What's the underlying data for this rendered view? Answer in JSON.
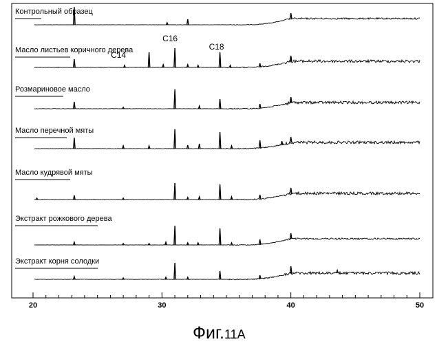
{
  "chart_data": {
    "type": "line",
    "title": "",
    "xlabel": "",
    "ylabel": "",
    "xlim": [
      20,
      50
    ],
    "x_ticks": [
      20,
      30,
      40,
      50
    ],
    "grid": false,
    "series": [
      {
        "name": "Контрольный образец",
        "peaks": [
          [
            23.2,
            26
          ],
          [
            30.4,
            3
          ],
          [
            32.0,
            8
          ],
          [
            40.0,
            8
          ]
        ],
        "noise": "low"
      },
      {
        "name": "Масло листьев коричного дерева",
        "peaks": [
          [
            23.2,
            12
          ],
          [
            27.1,
            3
          ],
          [
            29.0,
            22
          ],
          [
            30.1,
            4
          ],
          [
            31.0,
            28
          ],
          [
            32.0,
            4
          ],
          [
            32.8,
            3
          ],
          [
            34.5,
            22
          ],
          [
            35.3,
            3
          ],
          [
            37.6,
            5
          ],
          [
            40.0,
            8
          ]
        ],
        "noise": "medium"
      },
      {
        "name": "Розмариновое масло",
        "peaks": [
          [
            23.2,
            10
          ],
          [
            27.0,
            2
          ],
          [
            31.0,
            28
          ],
          [
            32.9,
            4
          ],
          [
            34.5,
            14
          ],
          [
            37.6,
            6
          ],
          [
            40.0,
            8
          ]
        ],
        "noise": "medium"
      },
      {
        "name": "Масло перечной мяты",
        "peaks": [
          [
            23.2,
            16
          ],
          [
            27.0,
            4
          ],
          [
            29.0,
            4
          ],
          [
            31.0,
            28
          ],
          [
            32.0,
            5
          ],
          [
            32.9,
            7
          ],
          [
            34.5,
            24
          ],
          [
            35.4,
            4
          ],
          [
            37.6,
            11
          ],
          [
            39.3,
            5
          ],
          [
            40.0,
            8
          ]
        ],
        "noise": "medium"
      },
      {
        "name": "Масло кудрявой мяты",
        "peaks": [
          [
            20.3,
            2
          ],
          [
            23.2,
            6
          ],
          [
            27.0,
            2
          ],
          [
            31.0,
            24
          ],
          [
            32.0,
            3
          ],
          [
            32.9,
            4
          ],
          [
            34.5,
            22
          ],
          [
            35.4,
            4
          ],
          [
            37.6,
            6
          ],
          [
            40.0,
            8
          ]
        ],
        "noise": "medium"
      },
      {
        "name": "Экстракт рожкового дерева",
        "peaks": [
          [
            23.2,
            4
          ],
          [
            27.0,
            2
          ],
          [
            29.0,
            2
          ],
          [
            30.3,
            4
          ],
          [
            31.0,
            28
          ],
          [
            32.0,
            3
          ],
          [
            32.8,
            3
          ],
          [
            34.5,
            24
          ],
          [
            35.4,
            3
          ],
          [
            37.6,
            7
          ],
          [
            40.0,
            8
          ]
        ],
        "noise": "low"
      },
      {
        "name": "Экстракт корня солодки",
        "peaks": [
          [
            23.2,
            4
          ],
          [
            27.0,
            2
          ],
          [
            30.3,
            3
          ],
          [
            31.0,
            24
          ],
          [
            32.0,
            3
          ],
          [
            34.5,
            12
          ],
          [
            37.6,
            5
          ],
          [
            40.0,
            10
          ],
          [
            43.6,
            4
          ]
        ],
        "noise": "medium"
      }
    ],
    "annotations": [
      {
        "text": "C14",
        "x": 27.0,
        "series": 1
      },
      {
        "text": "C16",
        "x": 31.0,
        "series": 1
      },
      {
        "text": "C18",
        "x": 34.5,
        "series": 1
      }
    ]
  },
  "caption": {
    "main": "Фиг.",
    "number": "11A"
  }
}
